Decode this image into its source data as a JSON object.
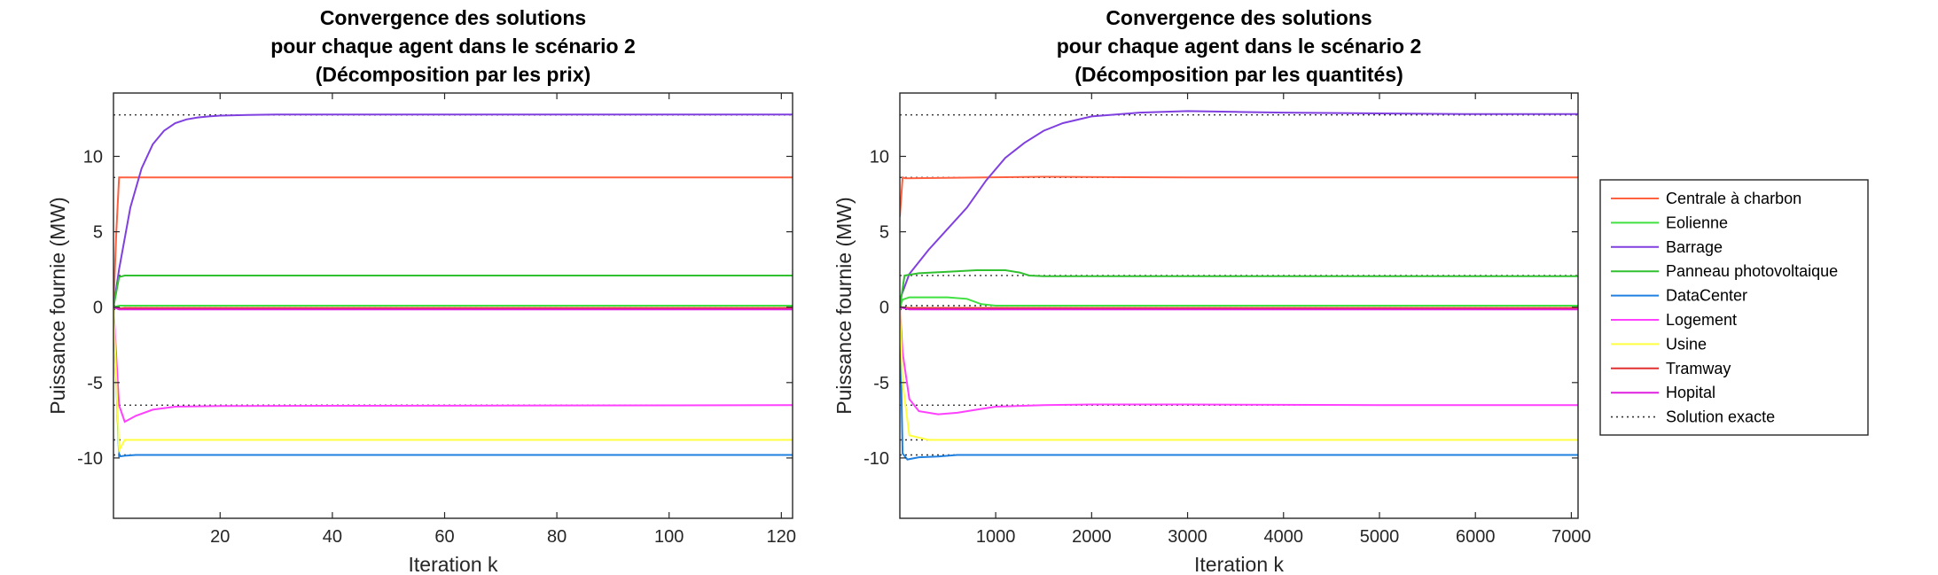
{
  "chart_data": [
    {
      "type": "line",
      "title": [
        "Convergence des solutions",
        "pour chaque agent dans le scénario 2",
        "(Décomposition par les prix)"
      ],
      "xlabel": "Iteration k",
      "ylabel": "Puissance fournie (MW)",
      "xlim": [
        1,
        122
      ],
      "ylim": [
        -14,
        14.2
      ],
      "xticks": [
        20,
        40,
        60,
        80,
        100,
        120
      ],
      "yticks": [
        -10,
        -5,
        0,
        5,
        10
      ],
      "grid": false,
      "series": [
        {
          "name": "Centrale à charbon",
          "color": "#ff6040",
          "x": [
            1,
            1.5,
            2,
            3,
            122
          ],
          "y": [
            0,
            5,
            8.6,
            8.6,
            8.6
          ]
        },
        {
          "name": "Eolienne",
          "color": "#40e040",
          "x": [
            1,
            2,
            3,
            122
          ],
          "y": [
            0,
            0.1,
            0.1,
            0.1
          ]
        },
        {
          "name": "Barrage",
          "color": "#8040e0",
          "x": [
            1,
            2,
            4,
            6,
            8,
            10,
            12,
            14,
            16,
            18,
            20,
            25,
            30,
            122
          ],
          "y": [
            0,
            2.5,
            6.6,
            9.2,
            10.8,
            11.7,
            12.2,
            12.45,
            12.58,
            12.65,
            12.7,
            12.75,
            12.77,
            12.78
          ]
        },
        {
          "name": "Panneau photovoltaique",
          "color": "#30c030",
          "x": [
            1,
            2,
            3,
            122
          ],
          "y": [
            0,
            2,
            2.1,
            2.1
          ]
        },
        {
          "name": "DataCenter",
          "color": "#2080e0",
          "x": [
            1,
            2,
            3,
            5,
            122
          ],
          "y": [
            0,
            -9.9,
            -9.85,
            -9.8,
            -9.8
          ]
        },
        {
          "name": "Logement",
          "color": "#ff40ff",
          "x": [
            1,
            2,
            3,
            5,
            8,
            12,
            20,
            122
          ],
          "y": [
            0,
            -6.5,
            -7.6,
            -7.2,
            -6.8,
            -6.6,
            -6.55,
            -6.5
          ]
        },
        {
          "name": "Usine",
          "color": "#ffff40",
          "x": [
            1,
            2,
            3,
            122
          ],
          "y": [
            0,
            -9.5,
            -8.8,
            -8.8
          ]
        },
        {
          "name": "Tramway",
          "color": "#e03030",
          "x": [
            1,
            2,
            3,
            122
          ],
          "y": [
            0,
            -0.1,
            -0.05,
            -0.05
          ]
        },
        {
          "name": "Hopital",
          "color": "#e020e0",
          "x": [
            1,
            2,
            3,
            122
          ],
          "y": [
            0,
            -0.15,
            -0.15,
            -0.15
          ]
        }
      ],
      "exact_solution": {
        "name": "Solution exacte",
        "color": "#333333",
        "values": [
          12.75,
          8.6,
          2.1,
          0.1,
          -0.05,
          -0.15,
          -6.5,
          -8.8,
          -9.8
        ]
      }
    },
    {
      "type": "line",
      "title": [
        "Convergence des solutions",
        "pour chaque agent dans le scénario 2",
        "(Décomposition par les quantités)"
      ],
      "xlabel": "Iteration k",
      "ylabel": "Puissance fournie (MW)",
      "xlim": [
        1,
        7070
      ],
      "ylim": [
        -14,
        14.2
      ],
      "xticks": [
        1000,
        2000,
        3000,
        4000,
        5000,
        6000,
        7000
      ],
      "yticks": [
        -10,
        -5,
        0,
        5,
        10
      ],
      "grid": false,
      "series": [
        {
          "name": "Centrale à charbon",
          "color": "#ff6040",
          "x": [
            1,
            30,
            60,
            1500,
            3000,
            5000,
            7070
          ],
          "y": [
            6,
            8.6,
            8.55,
            8.65,
            8.6,
            8.6,
            8.6
          ]
        },
        {
          "name": "Eolienne",
          "color": "#40e040",
          "x": [
            1,
            30,
            100,
            500,
            700,
            850,
            1000,
            1500,
            2000,
            7070
          ],
          "y": [
            0,
            0.5,
            0.65,
            0.65,
            0.55,
            0.2,
            0.1,
            0.1,
            0.1,
            0.1
          ]
        },
        {
          "name": "Barrage",
          "color": "#8040e0",
          "x": [
            1,
            100,
            300,
            500,
            700,
            900,
            1100,
            1300,
            1500,
            1700,
            2000,
            2500,
            3000,
            3500,
            4000,
            5000,
            6000,
            7070
          ],
          "y": [
            0.5,
            2.2,
            3.8,
            5.2,
            6.6,
            8.4,
            9.9,
            10.9,
            11.7,
            12.2,
            12.65,
            12.9,
            13.0,
            12.95,
            12.9,
            12.85,
            12.8,
            12.8
          ]
        },
        {
          "name": "Panneau photovoltaique",
          "color": "#30c030",
          "x": [
            1,
            50,
            200,
            500,
            800,
            1100,
            1250,
            1350,
            1500,
            2000,
            7070
          ],
          "y": [
            0,
            2.1,
            2.25,
            2.35,
            2.45,
            2.45,
            2.3,
            2.1,
            2.05,
            2.05,
            2.05
          ]
        },
        {
          "name": "DataCenter",
          "color": "#2080e0",
          "x": [
            1,
            30,
            80,
            200,
            400,
            600,
            1000,
            2000,
            7070
          ],
          "y": [
            0,
            -9.7,
            -10.1,
            -9.95,
            -9.9,
            -9.8,
            -9.8,
            -9.8,
            -9.8
          ]
        },
        {
          "name": "Logement",
          "color": "#ff40ff",
          "x": [
            1,
            30,
            100,
            200,
            400,
            600,
            800,
            1000,
            1500,
            2000,
            3000,
            5000,
            7070
          ],
          "y": [
            0,
            -3,
            -6.1,
            -6.9,
            -7.1,
            -7.0,
            -6.8,
            -6.6,
            -6.5,
            -6.45,
            -6.45,
            -6.5,
            -6.5
          ]
        },
        {
          "name": "Usine",
          "color": "#ffff40",
          "x": [
            1,
            30,
            100,
            300,
            7070
          ],
          "y": [
            0,
            -5,
            -8.5,
            -8.8,
            -8.8
          ]
        },
        {
          "name": "Tramway",
          "color": "#e03030",
          "x": [
            1,
            100,
            7070
          ],
          "y": [
            0,
            -0.05,
            -0.05
          ]
        },
        {
          "name": "Hopital",
          "color": "#e020e0",
          "x": [
            1,
            100,
            7070
          ],
          "y": [
            0,
            -0.15,
            -0.15
          ]
        }
      ],
      "exact_solution": {
        "name": "Solution exacte",
        "color": "#333333",
        "values": [
          12.75,
          8.6,
          2.1,
          0.1,
          -0.05,
          -0.15,
          -6.5,
          -8.8,
          -9.8
        ]
      }
    }
  ],
  "legend": {
    "placement": "right",
    "entries": [
      {
        "label": "Centrale à charbon",
        "color": "#ff6040",
        "style": "solid"
      },
      {
        "label": "Eolienne",
        "color": "#40e040",
        "style": "solid"
      },
      {
        "label": "Barrage",
        "color": "#8040e0",
        "style": "solid"
      },
      {
        "label": "Panneau photovoltaique",
        "color": "#30c030",
        "style": "solid"
      },
      {
        "label": "DataCenter",
        "color": "#2080e0",
        "style": "solid"
      },
      {
        "label": "Logement",
        "color": "#ff40ff",
        "style": "solid"
      },
      {
        "label": "Usine",
        "color": "#ffff40",
        "style": "solid"
      },
      {
        "label": "Tramway",
        "color": "#e03030",
        "style": "solid"
      },
      {
        "label": "Hopital",
        "color": "#e020e0",
        "style": "solid"
      },
      {
        "label": "Solution exacte",
        "color": "#333333",
        "style": "dotted"
      }
    ]
  }
}
